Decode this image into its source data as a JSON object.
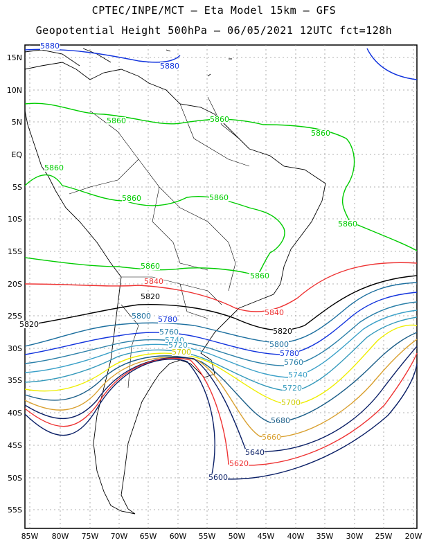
{
  "header": {
    "line1": "CPTEC/INPE/MCT –  Eta Model 15km – GFS",
    "line2": "Geopotential Height 500hPa – 06/05/2021 12UTC fct=128h"
  },
  "map": {
    "lat_labels": [
      "15N",
      "10N",
      "5N",
      "EQ",
      "5S",
      "10S",
      "15S",
      "20S",
      "25S",
      "30S",
      "35S",
      "40S",
      "45S",
      "50S",
      "55S"
    ],
    "lon_labels": [
      "85W",
      "80W",
      "75W",
      "70W",
      "65W",
      "60W",
      "55W",
      "50W",
      "45W",
      "40W",
      "35W",
      "30W",
      "25W",
      "20W"
    ],
    "colors": {
      "c5860": "#00cc00",
      "c5880": "#1133dd",
      "c5840": "#ee3333",
      "c5820": "#000000",
      "c5800": "#1b6e9e",
      "c5780": "#1133dd",
      "c5760": "#2a7fa8",
      "c5740": "#3aa0c8",
      "c5720": "#3399bb",
      "c5700": "#eeee00",
      "c5680": "#1b5e88",
      "c5660": "#d9a030",
      "c5640": "#0a1f66",
      "c5620": "#ee3333",
      "c5600": "#0a1f66"
    },
    "contour_labels": [
      {
        "name": "label-5880-north",
        "text": "5880",
        "color": "#1133dd"
      },
      {
        "name": "label-5880-top",
        "text": "5880",
        "color": "#1133dd"
      },
      {
        "name": "label-5860-a",
        "text": "5860",
        "color": "#00cc00"
      },
      {
        "name": "label-5860-b",
        "text": "5860",
        "color": "#00cc00"
      },
      {
        "name": "label-5860-c",
        "text": "5860",
        "color": "#00cc00"
      },
      {
        "name": "label-5860-d",
        "text": "5860",
        "color": "#00cc00"
      },
      {
        "name": "label-5860-e",
        "text": "5860",
        "color": "#00cc00"
      },
      {
        "name": "label-5860-f",
        "text": "5860",
        "color": "#00cc00"
      },
      {
        "name": "label-5860-g",
        "text": "5860",
        "color": "#00cc00"
      },
      {
        "name": "label-5860-h",
        "text": "5860",
        "color": "#00cc00"
      },
      {
        "name": "label-5860-i",
        "text": "5860",
        "color": "#00cc00"
      },
      {
        "name": "label-5840-a",
        "text": "5840",
        "color": "#ee3333"
      },
      {
        "name": "label-5840-b",
        "text": "5840",
        "color": "#ee3333"
      },
      {
        "name": "label-5820-a",
        "text": "5820",
        "color": "#000000"
      },
      {
        "name": "label-5820-b",
        "text": "5820",
        "color": "#000000"
      },
      {
        "name": "label-5820-c",
        "text": "5820",
        "color": "#000000"
      },
      {
        "name": "label-5800-a",
        "text": "5800",
        "color": "#1b6e9e"
      },
      {
        "name": "label-5800-b",
        "text": "5800",
        "color": "#1b6e9e"
      },
      {
        "name": "label-5780-a",
        "text": "5780",
        "color": "#1133dd"
      },
      {
        "name": "label-5780-b",
        "text": "5780",
        "color": "#1133dd"
      },
      {
        "name": "label-5760-a",
        "text": "5760",
        "color": "#2a7fa8"
      },
      {
        "name": "label-5760-b",
        "text": "5760",
        "color": "#2a7fa8"
      },
      {
        "name": "label-5740-a",
        "text": "5740",
        "color": "#3aa0c8"
      },
      {
        "name": "label-5740-b",
        "text": "5740",
        "color": "#3aa0c8"
      },
      {
        "name": "label-5720-a",
        "text": "5720",
        "color": "#3399bb"
      },
      {
        "name": "label-5720-b",
        "text": "5720",
        "color": "#3399bb"
      },
      {
        "name": "label-5700-a",
        "text": "5700",
        "color": "#cccc00"
      },
      {
        "name": "label-5700-b",
        "text": "5700",
        "color": "#cccc00"
      },
      {
        "name": "label-5680",
        "text": "5680",
        "color": "#1b5e88"
      },
      {
        "name": "label-5660",
        "text": "5660",
        "color": "#d9a030"
      },
      {
        "name": "label-5640",
        "text": "5640",
        "color": "#0a1f66"
      },
      {
        "name": "label-5620",
        "text": "5620",
        "color": "#ee3333"
      },
      {
        "name": "label-5600",
        "text": "5600",
        "color": "#0a1f66"
      }
    ]
  }
}
